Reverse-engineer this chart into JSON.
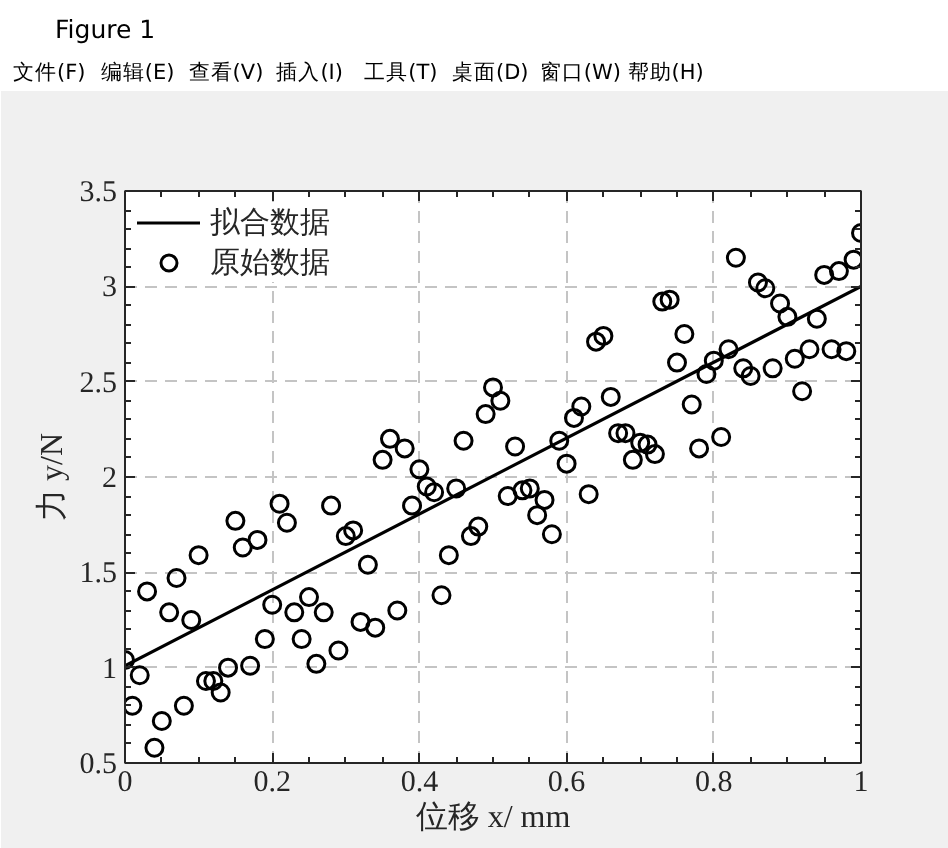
{
  "chart_data": {
    "type": "scatter",
    "xlabel": "位移 x/ mm",
    "ylabel": "力 y/N",
    "annotations": [
      "Figure 1",
      "文件(F)",
      "编辑(E)",
      "查看(V)",
      "插入(I)",
      "工具(T)",
      "桌面(D)",
      "窗口(W)",
      "帮助(H)"
    ],
    "xlim": [
      0,
      1
    ],
    "ylim": [
      0.5,
      3.5
    ],
    "xticks": [
      0,
      0.2,
      0.4,
      0.6,
      0.8,
      1
    ],
    "yticks": [
      0.5,
      1,
      1.5,
      2,
      2.5,
      3,
      3.5
    ],
    "grid": true,
    "legend": "top left",
    "series": [
      {
        "name": "拟合数据",
        "type": "line",
        "color": "#000000",
        "line_style": "solid",
        "x": [
          0,
          1
        ],
        "values": [
          1.01,
          3.0
        ]
      },
      {
        "name": "原始数据",
        "color": "#000000",
        "marker": "circle",
        "x": [
          0,
          0.01,
          0.02,
          0.03,
          0.04,
          0.05,
          0.06,
          0.07,
          0.08,
          0.09,
          0.1,
          0.11,
          0.12,
          0.13,
          0.14,
          0.15,
          0.16,
          0.17,
          0.18,
          0.19,
          0.2,
          0.21,
          0.22,
          0.23,
          0.24,
          0.25,
          0.26,
          0.27,
          0.28,
          0.29,
          0.3,
          0.31,
          0.32,
          0.33,
          0.34,
          0.35,
          0.36,
          0.37,
          0.38,
          0.39,
          0.4,
          0.41,
          0.42,
          0.43,
          0.44,
          0.45,
          0.46,
          0.47,
          0.48,
          0.49,
          0.5,
          0.51,
          0.52,
          0.53,
          0.54,
          0.55,
          0.56,
          0.57,
          0.58,
          0.59,
          0.6,
          0.61,
          0.62,
          0.63,
          0.64,
          0.65,
          0.66,
          0.67,
          0.68,
          0.69,
          0.7,
          0.71,
          0.72,
          0.73,
          0.74,
          0.75,
          0.76,
          0.77,
          0.78,
          0.79,
          0.8,
          0.81,
          0.82,
          0.83,
          0.84,
          0.85,
          0.86,
          0.87,
          0.88,
          0.89,
          0.9,
          0.91,
          0.92,
          0.93,
          0.94,
          0.95,
          0.96,
          0.97,
          0.98,
          0.99,
          1
        ],
        "values": [
          1.04,
          0.8,
          0.96,
          1.4,
          0.58,
          0.72,
          1.29,
          1.47,
          0.8,
          1.25,
          1.59,
          0.93,
          0.93,
          0.87,
          1.0,
          1.77,
          1.63,
          1.01,
          1.67,
          1.15,
          1.33,
          1.86,
          1.76,
          1.29,
          1.15,
          1.37,
          1.02,
          1.29,
          1.85,
          1.09,
          1.69,
          1.72,
          1.24,
          1.54,
          1.21,
          2.09,
          2.2,
          1.3,
          2.15,
          1.85,
          2.04,
          1.95,
          1.92,
          1.38,
          1.59,
          1.94,
          2.19,
          1.69,
          1.74,
          2.33,
          2.47,
          2.4,
          1.9,
          2.16,
          1.93,
          1.94,
          1.8,
          1.88,
          1.7,
          2.19,
          2.07,
          2.31,
          2.37,
          1.91,
          2.71,
          2.74,
          2.42,
          2.23,
          2.23,
          2.09,
          2.18,
          2.17,
          2.12,
          2.92,
          2.93,
          2.6,
          2.75,
          2.38,
          2.15,
          2.54,
          2.61,
          2.21,
          2.67,
          3.15,
          2.57,
          2.53,
          3.02,
          2.99,
          2.57,
          2.91,
          2.84,
          2.62,
          2.45,
          2.67,
          2.83,
          3.06,
          2.67,
          3.08,
          2.66,
          3.14,
          3.28
        ]
      }
    ]
  }
}
